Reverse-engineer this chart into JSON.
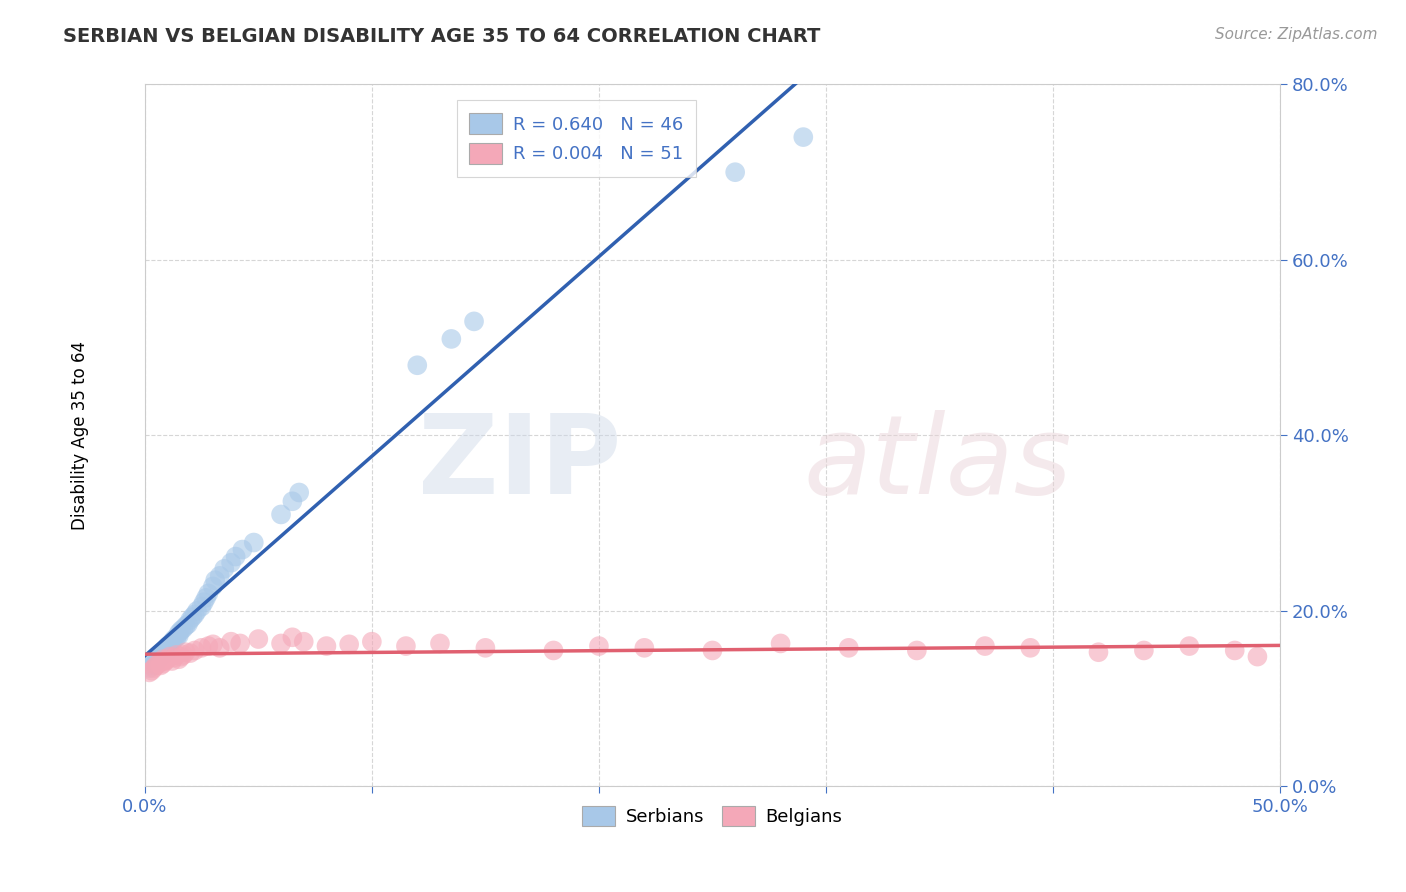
{
  "title": "SERBIAN VS BELGIAN DISABILITY AGE 35 TO 64 CORRELATION CHART",
  "source_text": "Source: ZipAtlas.com",
  "ylabel": "Disability Age 35 to 64",
  "xlim": [
    0.0,
    0.5
  ],
  "ylim": [
    0.0,
    0.8
  ],
  "xticks": [
    0.0,
    0.1,
    0.2,
    0.3,
    0.4,
    0.5
  ],
  "xtick_labels": [
    "0.0%",
    "",
    "",
    "",
    "",
    "50.0%"
  ],
  "yticks": [
    0.0,
    0.2,
    0.4,
    0.6,
    0.8
  ],
  "ytick_labels": [
    "0.0%",
    "20.0%",
    "40.0%",
    "60.0%",
    "80.0%"
  ],
  "serbian_color": "#a8c8e8",
  "belgian_color": "#f4a8b8",
  "serbian_line_color": "#3060b0",
  "belgian_line_color": "#e06070",
  "legend_serbian_label": "R = 0.640   N = 46",
  "legend_belgian_label": "R = 0.004   N = 51",
  "serbian_x": [
    0.002,
    0.003,
    0.004,
    0.005,
    0.005,
    0.006,
    0.007,
    0.008,
    0.008,
    0.009,
    0.01,
    0.01,
    0.011,
    0.012,
    0.013,
    0.014,
    0.015,
    0.015,
    0.016,
    0.017,
    0.018,
    0.019,
    0.02,
    0.021,
    0.022,
    0.023,
    0.025,
    0.026,
    0.027,
    0.028,
    0.03,
    0.031,
    0.033,
    0.035,
    0.038,
    0.04,
    0.043,
    0.048,
    0.06,
    0.065,
    0.068,
    0.12,
    0.135,
    0.145,
    0.26,
    0.29
  ],
  "serbian_y": [
    0.135,
    0.138,
    0.14,
    0.142,
    0.145,
    0.145,
    0.148,
    0.15,
    0.152,
    0.155,
    0.155,
    0.16,
    0.162,
    0.165,
    0.168,
    0.17,
    0.172,
    0.175,
    0.178,
    0.18,
    0.183,
    0.185,
    0.19,
    0.193,
    0.196,
    0.2,
    0.205,
    0.21,
    0.215,
    0.22,
    0.228,
    0.235,
    0.24,
    0.248,
    0.255,
    0.262,
    0.27,
    0.278,
    0.31,
    0.325,
    0.335,
    0.48,
    0.51,
    0.53,
    0.7,
    0.74
  ],
  "belgian_x": [
    0.002,
    0.003,
    0.004,
    0.005,
    0.006,
    0.007,
    0.007,
    0.008,
    0.008,
    0.009,
    0.01,
    0.011,
    0.012,
    0.013,
    0.014,
    0.015,
    0.016,
    0.017,
    0.018,
    0.02,
    0.022,
    0.025,
    0.028,
    0.03,
    0.033,
    0.038,
    0.042,
    0.05,
    0.06,
    0.065,
    0.07,
    0.08,
    0.09,
    0.1,
    0.115,
    0.13,
    0.15,
    0.18,
    0.2,
    0.22,
    0.25,
    0.28,
    0.31,
    0.34,
    0.37,
    0.39,
    0.42,
    0.44,
    0.46,
    0.48,
    0.49
  ],
  "belgian_y": [
    0.13,
    0.132,
    0.135,
    0.138,
    0.14,
    0.138,
    0.142,
    0.14,
    0.145,
    0.143,
    0.145,
    0.148,
    0.143,
    0.147,
    0.15,
    0.145,
    0.148,
    0.15,
    0.153,
    0.152,
    0.155,
    0.158,
    0.16,
    0.162,
    0.158,
    0.165,
    0.163,
    0.168,
    0.163,
    0.17,
    0.165,
    0.16,
    0.162,
    0.165,
    0.16,
    0.163,
    0.158,
    0.155,
    0.16,
    0.158,
    0.155,
    0.163,
    0.158,
    0.155,
    0.16,
    0.158,
    0.153,
    0.155,
    0.16,
    0.155,
    0.148
  ]
}
